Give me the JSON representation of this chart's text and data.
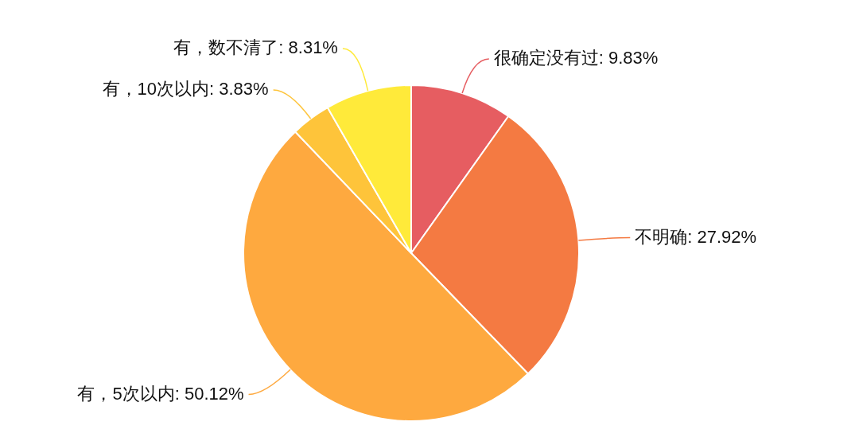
{
  "chart_data": {
    "type": "pie",
    "categories": [
      "很确定没有过",
      "不明确",
      "有，5次以内",
      "有，10次以内",
      "有，数不清了"
    ],
    "values": [
      9.83,
      27.92,
      50.12,
      3.83,
      8.31
    ],
    "colors": [
      "#e65d61",
      "#f47a42",
      "#fea93f",
      "#fec43a",
      "#ffea3a"
    ],
    "value_labels": [
      "9.83%",
      "27.92%",
      "50.12%",
      "3.83%",
      "8.31%"
    ],
    "legend": false
  }
}
